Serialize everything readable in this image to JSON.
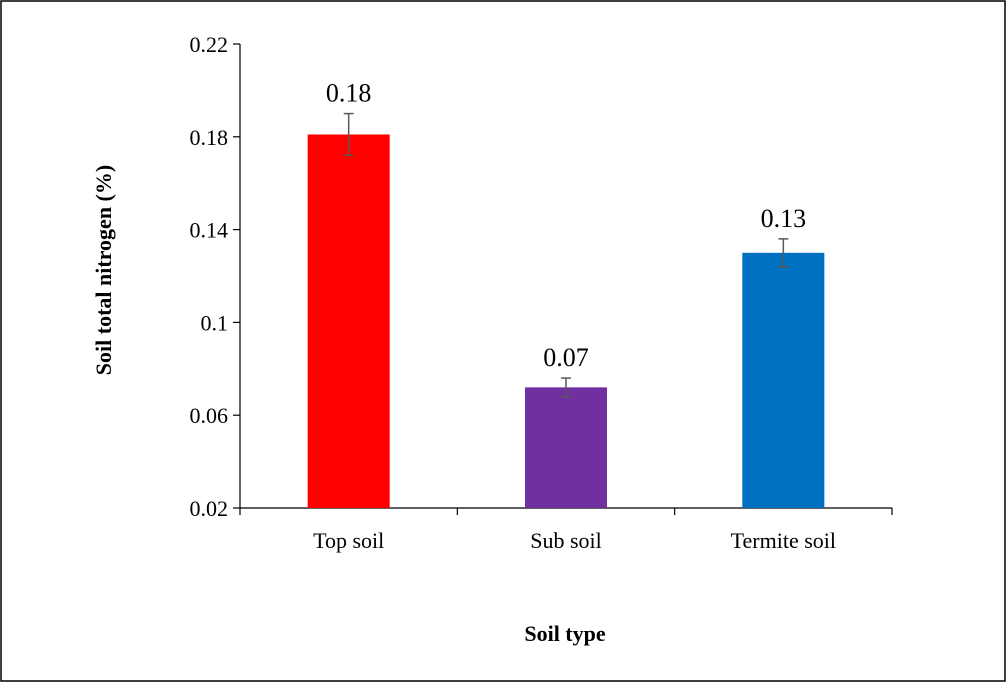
{
  "chart_data": {
    "type": "bar",
    "title": "",
    "xlabel": "Soil type",
    "ylabel": "Soil total nitrogen (%)",
    "categories": [
      "Top soil",
      "Sub soil",
      "Termite soil"
    ],
    "values": [
      0.181,
      0.072,
      0.13
    ],
    "data_labels": [
      "0.18",
      "0.07",
      "0.13"
    ],
    "error": [
      0.009,
      0.004,
      0.006
    ],
    "bar_colors": [
      "#ff0000",
      "#7030a0",
      "#0070c0"
    ],
    "ylim": [
      0.02,
      0.22
    ],
    "yticks": [
      0.02,
      0.06,
      0.1,
      0.14,
      0.18,
      0.22
    ],
    "ytick_labels": [
      "0.02",
      "0.06",
      "0.1",
      "0.14",
      "0.18",
      "0.22"
    ],
    "grid": false,
    "legend": "none"
  }
}
